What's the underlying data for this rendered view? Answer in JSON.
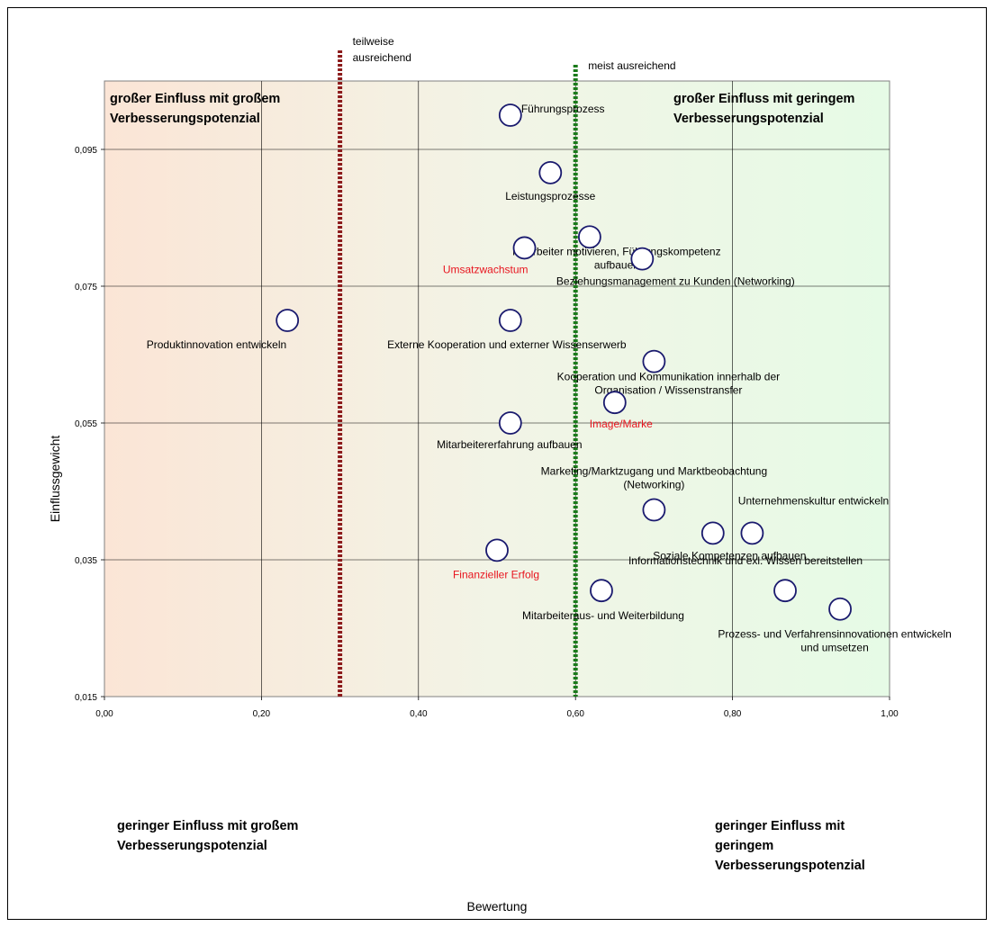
{
  "chart_data": {
    "type": "scatter",
    "xlabel": "Bewertung",
    "ylabel": "Einflussgewicht",
    "xlim": [
      0,
      1
    ],
    "ylim": [
      0.015,
      0.105
    ],
    "x_ticks": [
      "0,00",
      "0,20",
      "0,40",
      "0,60",
      "0,80",
      "1,00"
    ],
    "y_ticks": [
      "0,015",
      "0,035",
      "0,055",
      "0,075",
      "0,095"
    ],
    "grid": true,
    "thresholds": [
      {
        "x": 0.3,
        "label": [
          "teilweise",
          "ausreichend"
        ],
        "color": "#8b1a1a"
      },
      {
        "x": 0.6,
        "label": [
          "meist ausreichend"
        ],
        "color": "#1a7a1a"
      }
    ],
    "quadrants": {
      "top_left": [
        "großer Einfluss mit großem",
        "Verbesserungspotenzial"
      ],
      "top_right": [
        "großer Einfluss mit geringem",
        "Verbesserungspotenzial"
      ],
      "bottom_left": [
        "geringer Einfluss mit großem",
        "Verbesserungspotenzial"
      ],
      "bottom_right": [
        "geringer Einfluss mit",
        "geringem",
        "Verbesserungspotenzial"
      ]
    },
    "points": [
      {
        "x": 0.517,
        "y": 0.1,
        "label": [
          "Führungsprozess"
        ],
        "color": "#000000"
      },
      {
        "x": 0.568,
        "y": 0.0916,
        "label": [
          "Leistungsprozesse"
        ],
        "color": "#000000"
      },
      {
        "x": 0.618,
        "y": 0.0822,
        "label": [
          "Mitarbeiter motivieren, Führungskompetenz",
          "aufbauen"
        ],
        "color": "#000000"
      },
      {
        "x": 0.535,
        "y": 0.0806,
        "label": [
          "Umsatzwachstum"
        ],
        "color": "#e8141e"
      },
      {
        "x": 0.685,
        "y": 0.079,
        "label": [
          "Beziehungsmanagement zu Kunden (Networking)"
        ],
        "color": "#000000"
      },
      {
        "x": 0.233,
        "y": 0.07,
        "label": [
          "Produktinnovation entwickeln"
        ],
        "color": "#000000"
      },
      {
        "x": 0.517,
        "y": 0.07,
        "label": [
          "Externe Kooperation und externer Wissenserwerb"
        ],
        "color": "#000000"
      },
      {
        "x": 0.7,
        "y": 0.064,
        "label": [
          "Kooperation und Kommunikation innerhalb der",
          "Organisation / Wissenstransfer"
        ],
        "color": "#000000"
      },
      {
        "x": 0.65,
        "y": 0.058,
        "label": [
          "Image/Marke"
        ],
        "color": "#e8141e"
      },
      {
        "x": 0.517,
        "y": 0.055,
        "label": [
          "Mitarbeitererfahrung aufbauen"
        ],
        "color": "#000000"
      },
      {
        "x": 0.7,
        "y": 0.0423,
        "label": [
          "Marketing/Marktzugang und Marktbeobachtung",
          "(Networking)"
        ],
        "color": "#000000"
      },
      {
        "x": 0.775,
        "y": 0.0389,
        "label": [
          "Unternehmenskultur entwickeln"
        ],
        "color": "#000000"
      },
      {
        "x": 0.825,
        "y": 0.0389,
        "label": [
          "Soziale Kompetenzen aufbauen"
        ],
        "color": "#000000"
      },
      {
        "x": 0.5,
        "y": 0.0364,
        "label": [
          "Finanzieller Erfolg"
        ],
        "color": "#e8141e"
      },
      {
        "x": 0.867,
        "y": 0.0305,
        "label": [
          "Informationstechnik und exl. Wissen bereitstellen"
        ],
        "color": "#000000"
      },
      {
        "x": 0.633,
        "y": 0.0305,
        "label": [
          "Mitarbeiteraus- und Weiterbildung"
        ],
        "color": "#000000"
      },
      {
        "x": 0.937,
        "y": 0.0278,
        "label": [
          "Prozess- und Verfahrensinnovationen entwickeln",
          "und umsetzen"
        ],
        "color": "#000000"
      }
    ]
  }
}
